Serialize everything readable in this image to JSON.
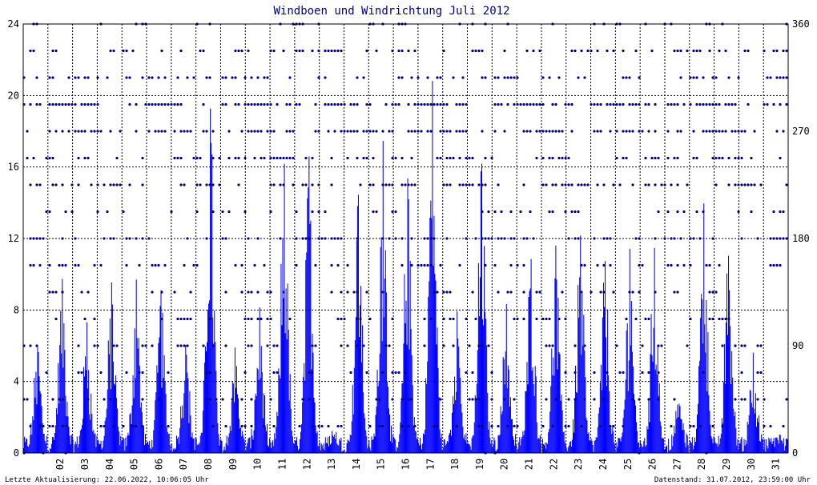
{
  "chart_data": {
    "type": "bar",
    "title": "Windboen und Windrichtung Juli 2012",
    "x_tick_labels": [
      "02",
      "03",
      "04",
      "05",
      "06",
      "07",
      "08",
      "09",
      "10",
      "11",
      "12",
      "13",
      "14",
      "15",
      "16",
      "17",
      "18",
      "19",
      "20",
      "21",
      "22",
      "23",
      "24",
      "25",
      "26",
      "27",
      "28",
      "29",
      "30",
      "31"
    ],
    "x_range_days": [
      1,
      32
    ],
    "y_left": {
      "range": [
        0,
        24
      ],
      "ticks": [
        0,
        4,
        8,
        12,
        16,
        20,
        24
      ],
      "labels": [
        "0",
        "4",
        "8",
        "12",
        "16",
        "20",
        "24"
      ]
    },
    "y_right": {
      "range": [
        0,
        360
      ],
      "ticks": [
        0,
        90,
        180,
        270,
        360
      ],
      "labels": [
        "0",
        "90",
        "180",
        "270",
        "360"
      ]
    },
    "grid": true,
    "colors": {
      "bars": "#0000ff",
      "direction_dots": "#000080",
      "grid": "#000000",
      "title": "#000080",
      "frame": "#000000"
    },
    "series": [
      {
        "type": "bar",
        "axis": "left",
        "daily_max": [
          5.5,
          9.3,
          6.5,
          8.7,
          9.0,
          8.5,
          6.0,
          19.0,
          5.5,
          7.5,
          15.8,
          15.8,
          0.8,
          14.2,
          17.3,
          14.5,
          20.5,
          7.8,
          15.8,
          7.5,
          10.8,
          10.8,
          12.1,
          10.0,
          10.8,
          10.8,
          2.5,
          13.1,
          11.0,
          5.3,
          0.5
        ]
      },
      {
        "type": "scatter",
        "axis": "right",
        "direction_levels": [
          0,
          22.5,
          45,
          67.5,
          90,
          112.5,
          135,
          157.5,
          180,
          202.5,
          225,
          247.5,
          270,
          292.5,
          315,
          337.5,
          360
        ]
      }
    ],
    "footer_left": "Letzte Aktualisierung: 22.06.2022, 10:06:05 Uhr",
    "footer_right": "Datenstand: 31.07.2012, 23:59:00 Uhr"
  }
}
